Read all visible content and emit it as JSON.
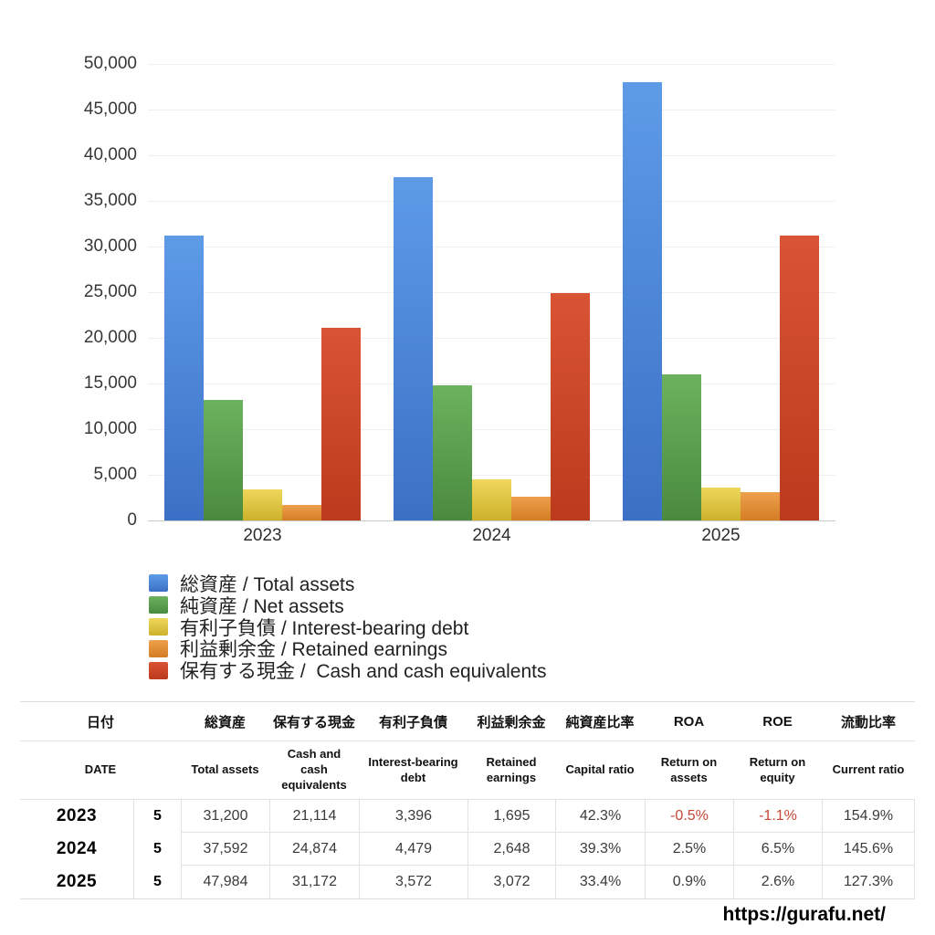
{
  "chart_data": {
    "type": "bar",
    "title": "",
    "categories": [
      "2023",
      "2024",
      "2025"
    ],
    "series": [
      {
        "label": "総資産 / Total assets",
        "color_top": "#5d9be7",
        "color_bottom": "#3c70c6",
        "values": [
          31200,
          37592,
          47984
        ]
      },
      {
        "label": "純資産 / Net assets",
        "color_top": "#6cb25e",
        "color_bottom": "#4a8a3f",
        "values": [
          13198,
          14774,
          16027
        ]
      },
      {
        "label": "有利子負債 / Interest-bearing debt",
        "color_top": "#eed75b",
        "color_bottom": "#ccb12b",
        "values": [
          3396,
          4479,
          3572
        ]
      },
      {
        "label": "利益剰余金 / Retained earnings",
        "color_top": "#eda04c",
        "color_bottom": "#d47d24",
        "values": [
          1695,
          2648,
          3072
        ]
      },
      {
        "label": "保有する現金 /  Cash and cash equivalents",
        "color_top": "#d95435",
        "color_bottom": "#bc3a1d",
        "values": [
          21114,
          24874,
          31172
        ]
      }
    ],
    "ylim": [
      0,
      50000
    ],
    "ytick_step": 5000,
    "ytick_labels": [
      "0",
      "5,000",
      "10,000",
      "15,000",
      "20,000",
      "25,000",
      "30,000",
      "35,000",
      "40,000",
      "45,000",
      "50,000"
    ],
    "grid": true,
    "legend_position": "below-left"
  },
  "table": {
    "header_ja": [
      "日付",
      "総資産",
      "保有する現金",
      "有利子負債",
      "利益剰余金",
      "純資産比率",
      "ROA",
      "ROE",
      "流動比率"
    ],
    "header_en": [
      "DATE",
      "Total assets",
      "Cash and cash equivalents",
      "Interest-bearing debt",
      "Retained earnings",
      "Capital ratio",
      "Return on assets",
      "Return on equity",
      "Current ratio"
    ],
    "rows": [
      {
        "year": "2023",
        "month": "5",
        "values": [
          "31,200",
          "21,114",
          "3,396",
          "1,695",
          "42.3%",
          "-0.5%",
          "-1.1%",
          "154.9%"
        ]
      },
      {
        "year": "2024",
        "month": "5",
        "values": [
          "37,592",
          "24,874",
          "4,479",
          "2,648",
          "39.3%",
          "2.5%",
          "6.5%",
          "145.6%"
        ]
      },
      {
        "year": "2025",
        "month": "5",
        "values": [
          "47,984",
          "31,172",
          "3,572",
          "3,072",
          "33.4%",
          "0.9%",
          "2.6%",
          "127.3%"
        ]
      }
    ],
    "negative_color": "#c74634"
  },
  "footer": {
    "url": "https://gurafu.net/"
  }
}
